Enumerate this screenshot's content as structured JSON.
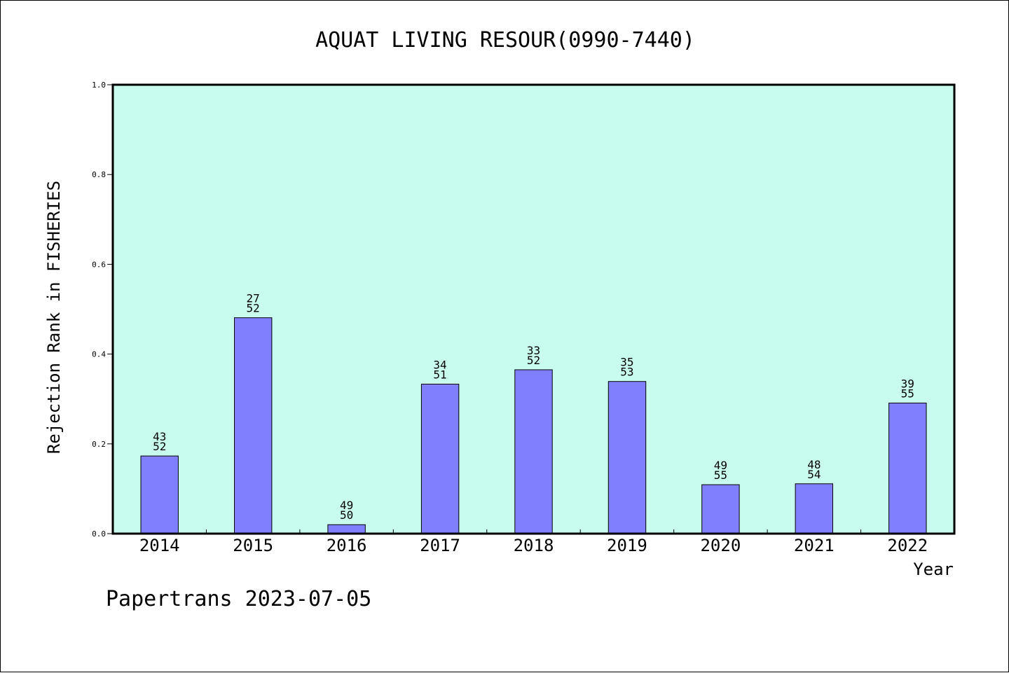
{
  "chart_data": {
    "type": "bar",
    "title": "AQUAT LIVING RESOUR(0990-7440)",
    "xlabel": "Year",
    "ylabel": "Rejection Rank in FISHERIES",
    "footer": "Papertrans 2023-07-05",
    "ylim": [
      0,
      1.0
    ],
    "yticks": [
      "0.0",
      "0.2",
      "0.4",
      "0.6",
      "0.8",
      "1.0"
    ],
    "categories": [
      "2014",
      "2015",
      "2016",
      "2017",
      "2018",
      "2019",
      "2020",
      "2021",
      "2022"
    ],
    "values": [
      0.173,
      0.481,
      0.02,
      0.333,
      0.365,
      0.339,
      0.109,
      0.111,
      0.291
    ],
    "labels_top": [
      "43",
      "27",
      "49",
      "34",
      "33",
      "35",
      "49",
      "48",
      "39"
    ],
    "labels_bottom": [
      "52",
      "52",
      "50",
      "51",
      "52",
      "53",
      "55",
      "54",
      "55"
    ],
    "grid": false,
    "legend": "none",
    "colors": {
      "plot_background": "#c8fcee",
      "bar_fill": "#8080ff",
      "bar_stroke": "#000000"
    }
  }
}
